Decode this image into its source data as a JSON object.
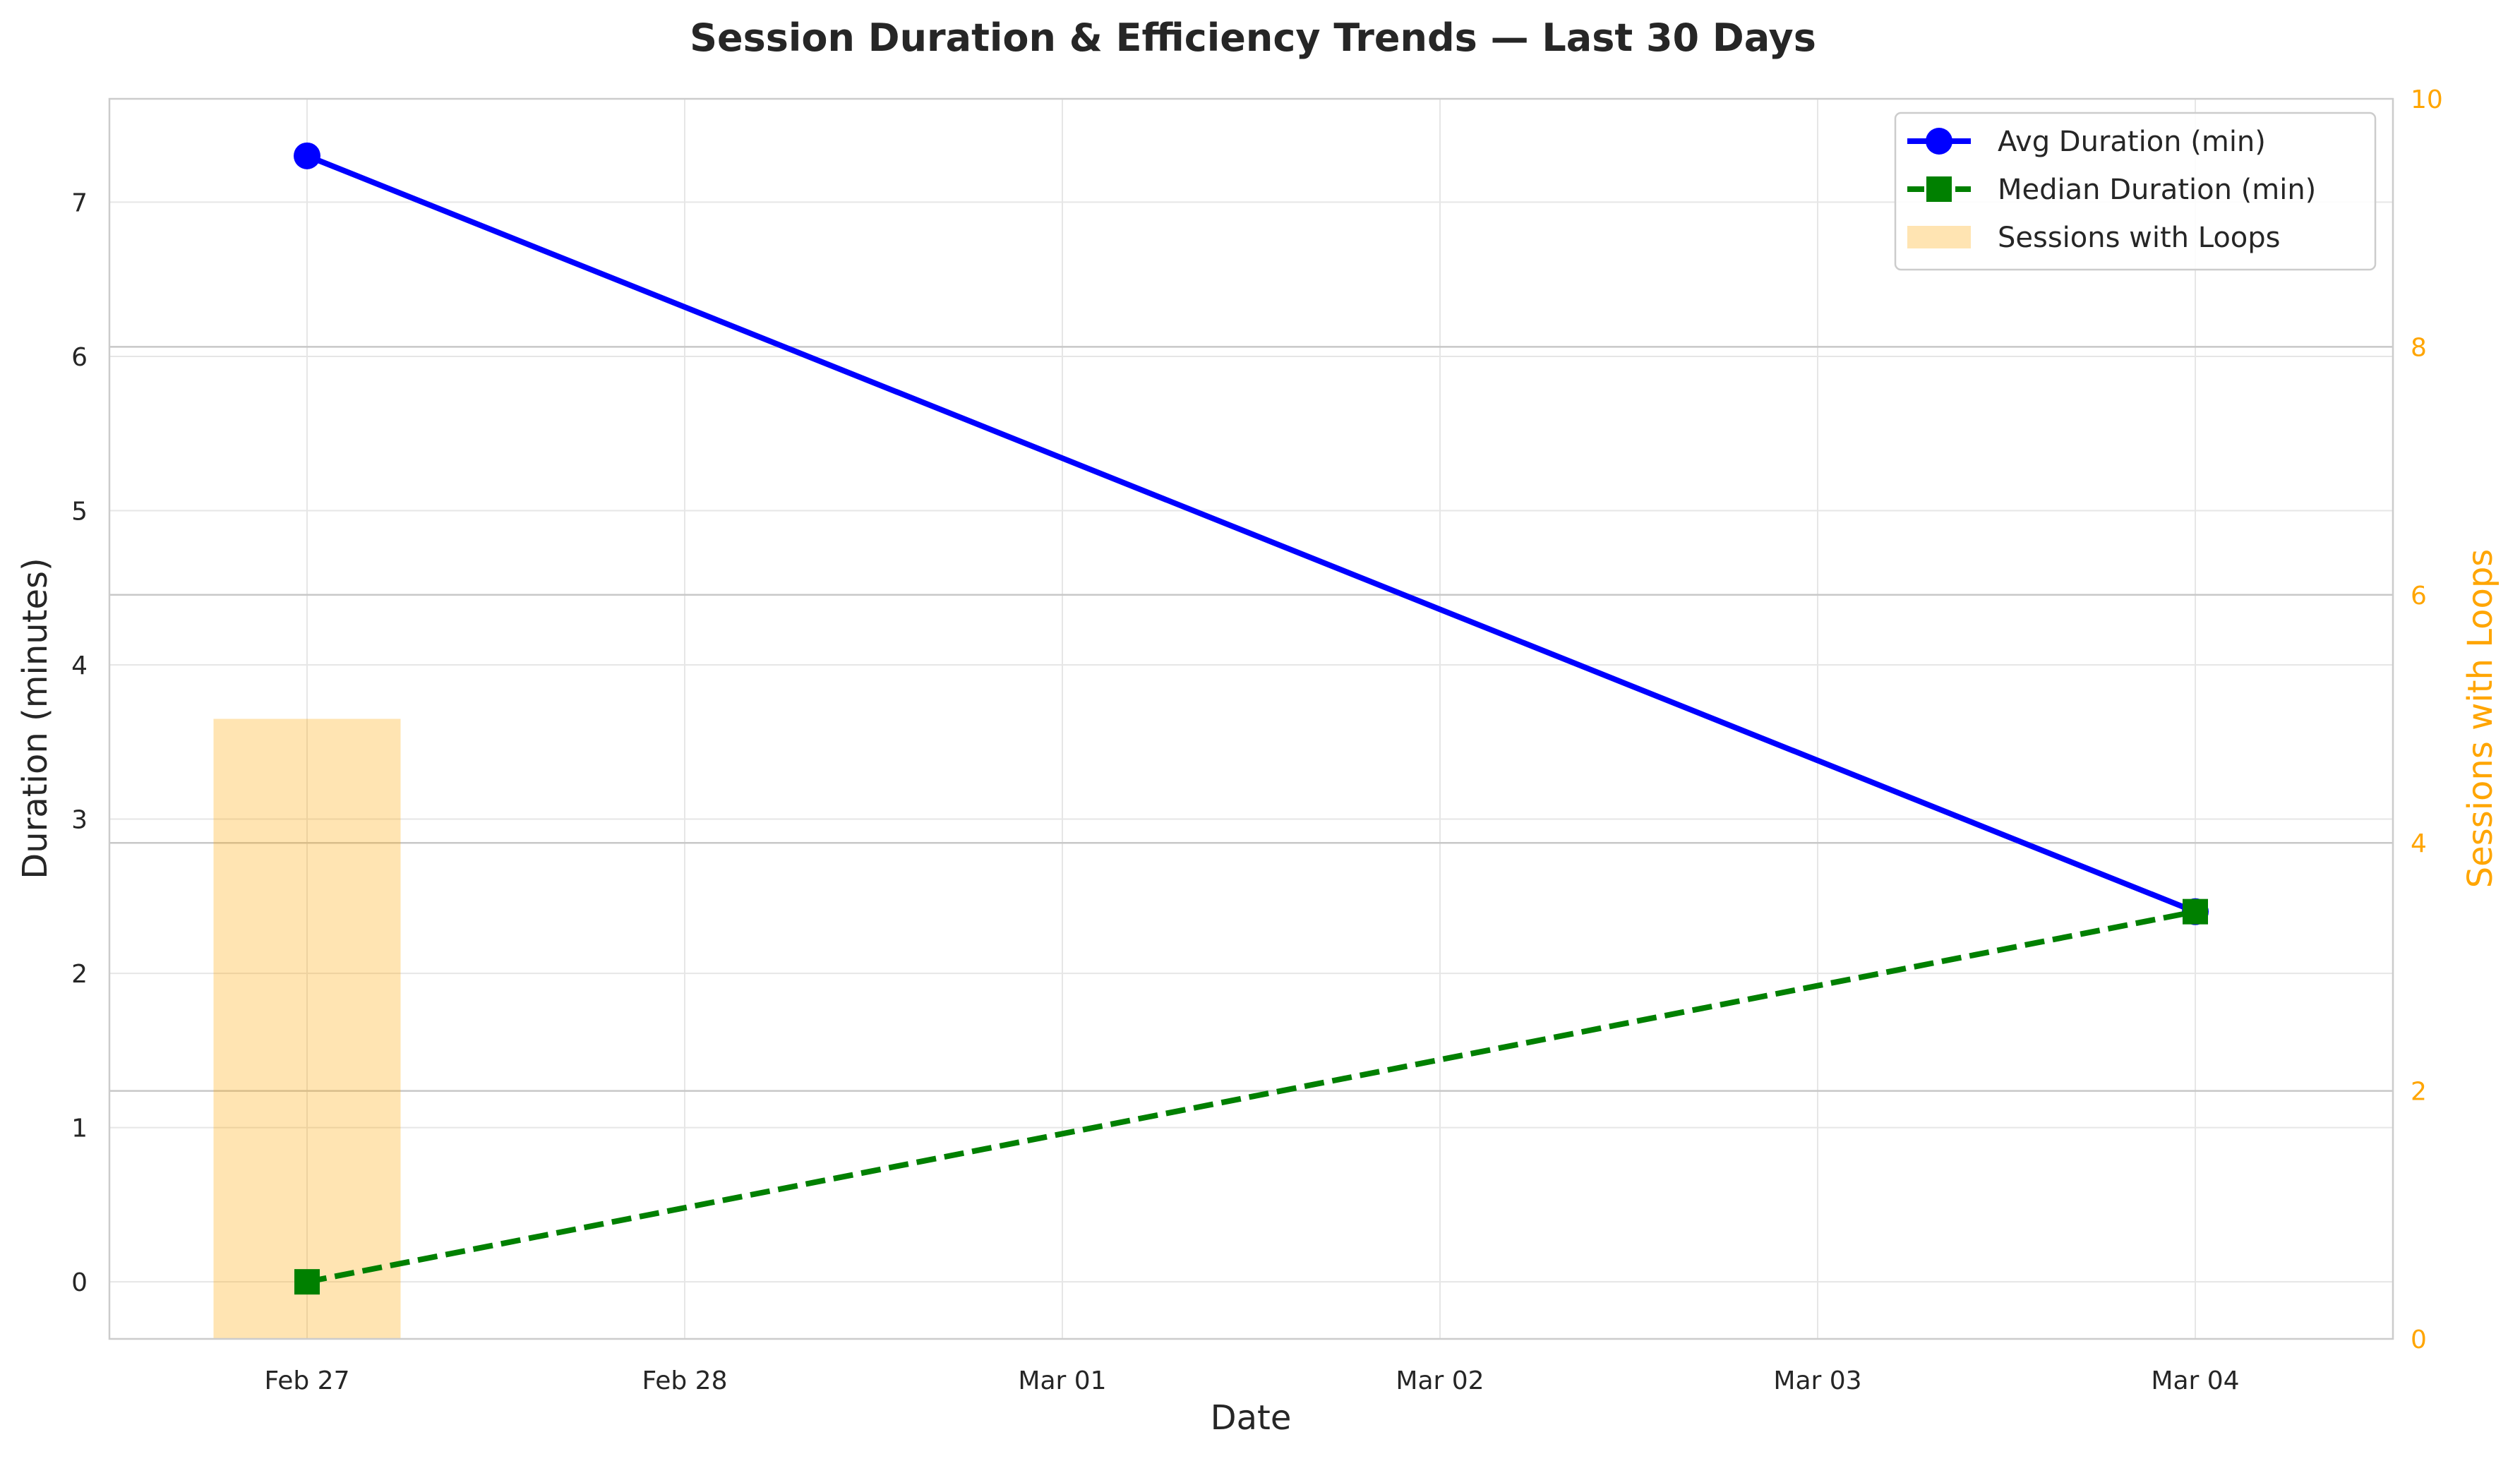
{
  "chart_data": {
    "type": "line",
    "title": "Session Duration & Efficiency Trends — Last 30 Days",
    "xlabel": "Date",
    "ylabel": "Duration (minutes)",
    "y2label": "Sessions with Loops",
    "x": [
      "2025-02-27",
      "2025-03-04"
    ],
    "x_ticks": [
      "Feb 27",
      "Feb 28",
      "Mar 01",
      "Mar 02",
      "Mar 03",
      "Mar 04"
    ],
    "ylim": [
      -0.37,
      7.67
    ],
    "y_ticks": [
      0,
      1,
      2,
      3,
      4,
      5,
      6,
      7
    ],
    "y2lim": [
      0,
      10
    ],
    "y2_ticks": [
      0,
      2,
      4,
      6,
      8,
      10
    ],
    "grid": true,
    "legend_position": "top-right",
    "series": [
      {
        "name": "Avg Duration (min)",
        "axis": "left",
        "kind": "line",
        "marker": "circle",
        "dash": "solid",
        "color": "#0000FF",
        "x": [
          "Feb 27",
          "Mar 04"
        ],
        "values": [
          7.3,
          2.4
        ]
      },
      {
        "name": "Median Duration (min)",
        "axis": "left",
        "kind": "line",
        "marker": "square",
        "dash": "dashed",
        "color": "#008000",
        "x": [
          "Feb 27",
          "Mar 04"
        ],
        "values": [
          0.0,
          2.4
        ]
      },
      {
        "name": "Sessions with Loops",
        "axis": "right",
        "kind": "bar",
        "color": "#FFA500",
        "x": [
          "Feb 27"
        ],
        "values": [
          5
        ]
      }
    ]
  }
}
